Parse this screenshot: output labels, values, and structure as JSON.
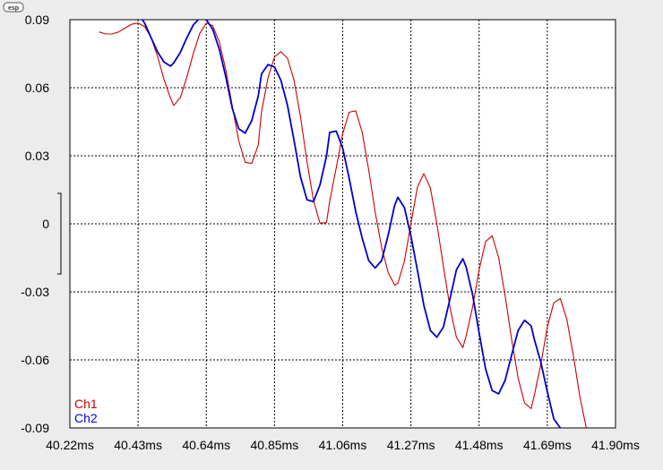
{
  "badge": {
    "label": "esp"
  },
  "chart_data": {
    "type": "line",
    "title": "",
    "xlabel": "",
    "ylabel": "",
    "xlim": [
      40.22,
      41.9
    ],
    "ylim": [
      -0.09,
      0.09
    ],
    "x_ticks": [
      40.22,
      40.43,
      40.64,
      40.85,
      41.06,
      41.27,
      41.48,
      41.69,
      41.9
    ],
    "x_tick_labels": [
      "40.22ms",
      "40.43ms",
      "40.64ms",
      "40.85ms",
      "41.06ms",
      "41.27ms",
      "41.48ms",
      "41.69ms",
      "41.90ms"
    ],
    "y_ticks": [
      0.09,
      0.06,
      0.03,
      0,
      -0.03,
      -0.06,
      -0.09
    ],
    "y_tick_labels": [
      "0.09",
      "0.06",
      "0.03",
      "0",
      "-0.03",
      "-0.06",
      "-0.09"
    ],
    "grid": true,
    "legend_position": "bottom-left",
    "series": [
      {
        "name": "Ch1",
        "color": "#cc0000",
        "x": [
          40.31,
          40.33,
          40.35,
          40.37,
          40.39,
          40.41,
          40.43,
          40.45,
          40.47,
          40.49,
          40.51,
          40.53,
          40.54,
          40.56,
          40.58,
          40.6,
          40.62,
          40.64,
          40.66,
          40.68,
          40.7,
          40.72,
          40.74,
          40.76,
          40.78,
          40.8,
          40.81,
          40.83,
          40.85,
          40.87,
          40.89,
          40.91,
          40.93,
          40.95,
          40.97,
          40.99,
          41.01,
          41.02,
          41.04,
          41.06,
          41.08,
          41.1,
          41.12,
          41.14,
          41.16,
          41.18,
          41.2,
          41.22,
          41.23,
          41.25,
          41.27,
          41.29,
          41.31,
          41.33,
          41.35,
          41.37,
          41.39,
          41.41,
          41.43,
          41.44,
          41.46,
          41.48,
          41.5,
          41.52,
          41.54,
          41.56,
          41.58,
          41.6,
          41.62,
          41.64,
          41.65,
          41.67,
          41.69,
          41.71,
          41.73,
          41.75,
          41.77,
          41.79,
          41.81,
          41.83
        ],
        "y": [
          0.0846,
          0.0837,
          0.0837,
          0.0846,
          0.0863,
          0.088,
          0.0885,
          0.087,
          0.0821,
          0.0738,
          0.0636,
          0.0553,
          0.0522,
          0.0557,
          0.0646,
          0.0751,
          0.084,
          0.0885,
          0.0873,
          0.0802,
          0.0679,
          0.0519,
          0.0365,
          0.0271,
          0.0266,
          0.0347,
          0.0494,
          0.0643,
          0.0736,
          0.0759,
          0.073,
          0.0635,
          0.0471,
          0.0276,
          0.0103,
          0.0003,
          0.0005,
          0.01,
          0.0247,
          0.0398,
          0.0492,
          0.0498,
          0.0405,
          0.0238,
          0.0053,
          -0.0105,
          -0.0215,
          -0.027,
          -0.0262,
          -0.0164,
          0.0,
          0.0162,
          0.0222,
          0.0157,
          0.0,
          -0.0187,
          -0.0365,
          -0.05,
          -0.0546,
          -0.0495,
          -0.0367,
          -0.0204,
          -0.0078,
          -0.0053,
          -0.0148,
          -0.0317,
          -0.0509,
          -0.068,
          -0.079,
          -0.0815,
          -0.0756,
          -0.062,
          -0.0455,
          -0.0348,
          -0.033,
          -0.042,
          -0.058,
          -0.076,
          -0.09,
          -0.096
        ]
      },
      {
        "name": "Ch2",
        "color": "#0000cc",
        "x": [
          40.35,
          40.37,
          40.39,
          40.41,
          40.43,
          40.45,
          40.47,
          40.49,
          40.51,
          40.53,
          40.54,
          40.56,
          40.58,
          40.6,
          40.62,
          40.64,
          40.66,
          40.68,
          40.7,
          40.72,
          40.74,
          40.76,
          40.78,
          40.8,
          40.81,
          40.83,
          40.85,
          40.87,
          40.89,
          40.91,
          40.93,
          40.95,
          40.97,
          40.99,
          41.01,
          41.02,
          41.04,
          41.06,
          41.08,
          41.1,
          41.12,
          41.14,
          41.16,
          41.18,
          41.2,
          41.22,
          41.23,
          41.25,
          41.27,
          41.29,
          41.31,
          41.33,
          41.35,
          41.37,
          41.39,
          41.41,
          41.43,
          41.44,
          41.46,
          41.48,
          41.5,
          41.52,
          41.54,
          41.56,
          41.58,
          41.6,
          41.62,
          41.64,
          41.65,
          41.67,
          41.69,
          41.71,
          41.73,
          41.75,
          41.77,
          41.79,
          41.81,
          41.83
        ],
        "y": [
          0.094,
          0.095,
          0.0955,
          0.095,
          0.0928,
          0.0885,
          0.0821,
          0.0758,
          0.0713,
          0.0695,
          0.071,
          0.0756,
          0.082,
          0.0877,
          0.0907,
          0.09,
          0.0857,
          0.0769,
          0.0648,
          0.0509,
          0.0419,
          0.04,
          0.0455,
          0.0563,
          0.0661,
          0.0702,
          0.0691,
          0.0632,
          0.0522,
          0.037,
          0.0207,
          0.0106,
          0.0098,
          0.0171,
          0.0298,
          0.0403,
          0.0409,
          0.0334,
          0.0201,
          0.0055,
          -0.0062,
          -0.0162,
          -0.0195,
          -0.0162,
          -0.0049,
          0.0082,
          0.0117,
          0.0071,
          -0.0053,
          -0.0205,
          -0.036,
          -0.047,
          -0.05,
          -0.0455,
          -0.0334,
          -0.0203,
          -0.0154,
          -0.0189,
          -0.0313,
          -0.0479,
          -0.064,
          -0.0735,
          -0.075,
          -0.069,
          -0.058,
          -0.047,
          -0.0425,
          -0.045,
          -0.051,
          -0.061,
          -0.074,
          -0.086,
          -0.09,
          -0.092,
          -0.093,
          -0.094,
          -0.095,
          -0.096
        ]
      }
    ]
  }
}
